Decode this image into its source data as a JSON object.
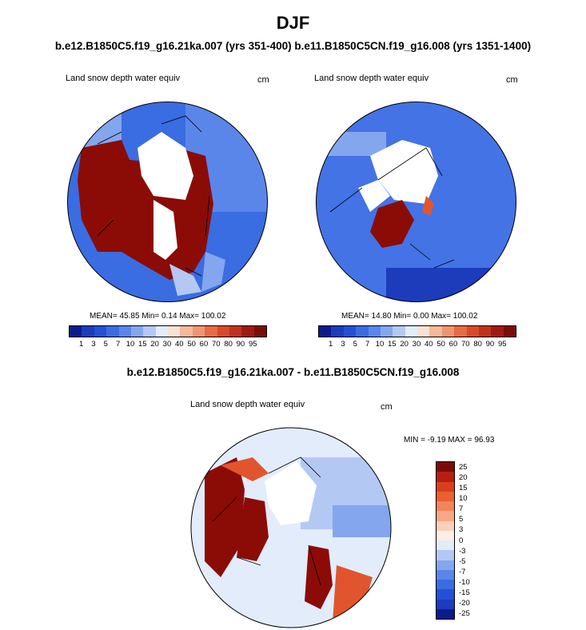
{
  "figure": {
    "season": "DJF",
    "cases_title": "b.e12.B1850C5.f19_g16.21ka.007 (yrs 351-400) b.e11.B1850C5CN.f19_g16.008 (yrs 1351-1400)",
    "diff_title": "b.e12.B1850C5.f19_g16.21ka.007 - b.e11.B1850C5CN.f19_g16.008"
  },
  "panels": [
    {
      "variable": "Land snow depth water equiv",
      "units": "cm",
      "stats": "MEAN=  45.85  Min=   0.14  Max= 100.02"
    },
    {
      "variable": "Land snow depth water equiv",
      "units": "cm",
      "stats": "MEAN=  14.80  Min=   0.00  Max= 100.02"
    },
    {
      "variable": "Land snow depth water equiv",
      "units": "cm",
      "stats": "MIN =  -9.19 MAX =  96.93"
    }
  ],
  "colorbars": {
    "abs_levels": [
      "1",
      "3",
      "5",
      "7",
      "10",
      "15",
      "20",
      "30",
      "40",
      "50",
      "60",
      "70",
      "80",
      "90",
      "95"
    ],
    "abs_colors": [
      "#0c1c8c",
      "#1c3cbc",
      "#2350d6",
      "#3a6ce2",
      "#5a86ea",
      "#84a6ef",
      "#b4c8f4",
      "#e2ecfb",
      "#fbe1d2",
      "#f6b99a",
      "#f09570",
      "#e66b46",
      "#d84a2a",
      "#c0321c",
      "#a01a10",
      "#7c0c08"
    ],
    "diff_levels": [
      "25",
      "20",
      "15",
      "10",
      "7",
      "5",
      "3",
      "0",
      "-3",
      "-5",
      "-7",
      "-10",
      "-15",
      "-20",
      "-25"
    ],
    "diff_colors": [
      "#7c0c08",
      "#b51f12",
      "#d8401c",
      "#ea602e",
      "#f2845a",
      "#f6a886",
      "#fbd0bb",
      "#fdeee6",
      "#e2ecfb",
      "#b4c8f4",
      "#84a6ef",
      "#5a86ea",
      "#3a6ce2",
      "#2350d6",
      "#1c3cbc",
      "#0c1c8c"
    ]
  },
  "map_colors": {
    "ocean_blue": "#3a6ce2",
    "deep_blue": "#1c3cbc",
    "light_blue": "#b4c8f4",
    "pale_blue": "#e2ecfb",
    "dark_red": "#8b0c06",
    "orange_red": "#e0552e",
    "land_none": "#ffffff"
  }
}
